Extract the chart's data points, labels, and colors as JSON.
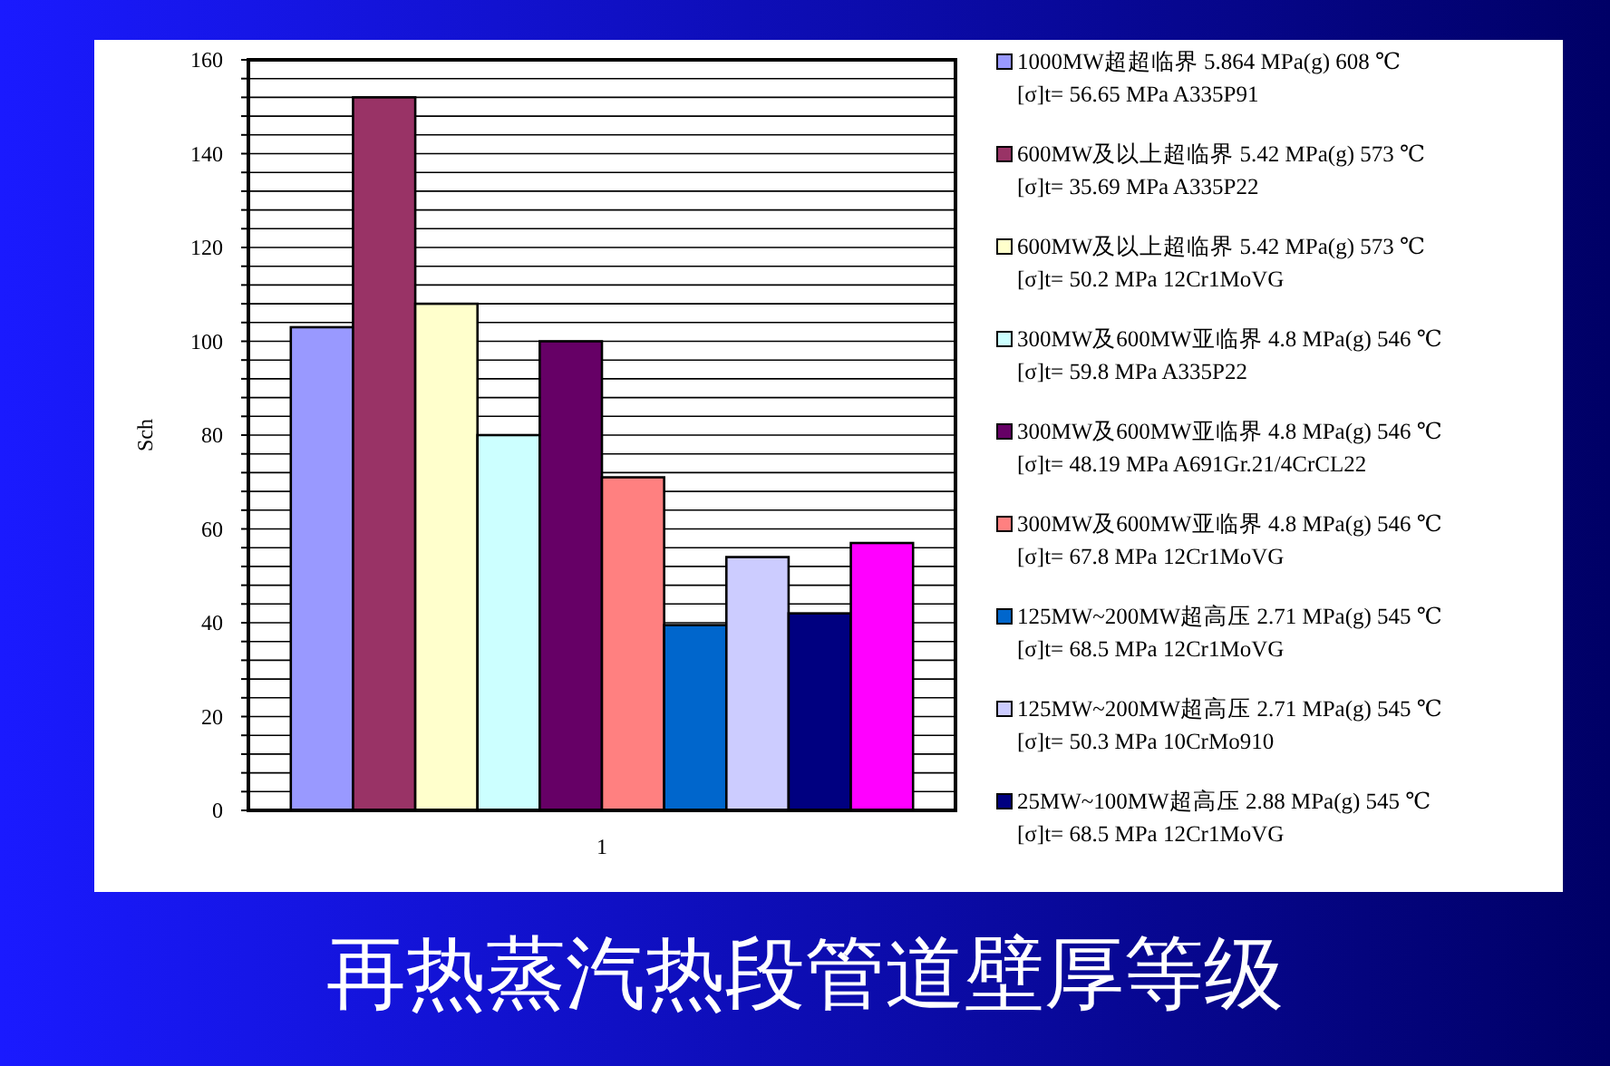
{
  "chart_data": {
    "type": "bar",
    "title": "再热蒸汽热段管道壁厚等级",
    "ylabel": "Sch",
    "categories": [
      "1"
    ],
    "ylim": [
      0,
      160
    ],
    "yticks": [
      0,
      {
        "value": 4,
        "label": null
      },
      {
        "value": 8,
        "label": null
      },
      {
        "value": 12,
        "label": null
      },
      {
        "value": 16,
        "label": null
      },
      20,
      {
        "value": 24,
        "label": null
      },
      {
        "value": 28,
        "label": null
      },
      {
        "value": 32,
        "label": null
      },
      {
        "value": 36,
        "label": null
      },
      40,
      {
        "value": 44,
        "label": null
      },
      {
        "value": 48,
        "label": null
      },
      {
        "value": 52,
        "label": null
      },
      {
        "value": 56,
        "label": null
      },
      60,
      {
        "value": 64,
        "label": null
      },
      {
        "value": 68,
        "label": null
      },
      {
        "value": 72,
        "label": null
      },
      {
        "value": 76,
        "label": null
      },
      80,
      {
        "value": 84,
        "label": null
      },
      {
        "value": 88,
        "label": null
      },
      {
        "value": 92,
        "label": null
      },
      {
        "value": 96,
        "label": null
      },
      100,
      {
        "value": 104,
        "label": null
      },
      {
        "value": 108,
        "label": null
      },
      {
        "value": 112,
        "label": null
      },
      {
        "value": 116,
        "label": null
      },
      120,
      {
        "value": 124,
        "label": null
      },
      {
        "value": 128,
        "label": null
      },
      {
        "value": 132,
        "label": null
      },
      {
        "value": 136,
        "label": null
      },
      140,
      {
        "value": 144,
        "label": null
      },
      {
        "value": 148,
        "label": null
      },
      {
        "value": 152,
        "label": null
      },
      {
        "value": 156,
        "label": null
      },
      160
    ],
    "grid": "y",
    "legend": "right",
    "series": [
      {
        "name": "1000MW超超临界 5.864 MPa(g) 608 ℃\n[σ]t= 56.65 MPa A335P91",
        "color": "#9999ff",
        "values": [
          103
        ]
      },
      {
        "name": "600MW及以上超临界 5.42 MPa(g) 573 ℃\n[σ]t= 35.69  MPa A335P22",
        "color": "#993366",
        "values": [
          152
        ]
      },
      {
        "name": "600MW及以上超临界 5.42 MPa(g) 573 ℃\n[σ]t= 50.2 MPa 12Cr1MoVG",
        "color": "#ffffcc",
        "values": [
          108
        ]
      },
      {
        "name": "300MW及600MW亚临界 4.8 MPa(g) 546 ℃\n[σ]t= 59.8  MPa A335P22",
        "color": "#ccffff",
        "values": [
          80
        ]
      },
      {
        "name": "300MW及600MW亚临界 4.8 MPa(g) 546 ℃\n[σ]t= 48.19 MPa A691Gr.21/4CrCL22",
        "color": "#660066",
        "values": [
          100
        ]
      },
      {
        "name": "300MW及600MW亚临界 4.8 MPa(g) 546 ℃\n[σ]t= 67.8 MPa 12Cr1MoVG",
        "color": "#ff8080",
        "values": [
          71
        ]
      },
      {
        "name": "125MW~200MW超高压 2.71 MPa(g) 545 ℃\n[σ]t= 68.5 MPa 12Cr1MoVG",
        "color": "#0066cc",
        "values": [
          39.5
        ]
      },
      {
        "name": "125MW~200MW超高压 2.71 MPa(g) 545 ℃\n[σ]t= 50.3 MPa 10CrMo910",
        "color": "#ccccff",
        "values": [
          54
        ]
      },
      {
        "name": "25MW~100MW超高压 2.88 MPa(g) 545 ℃\n[σ]t= 68.5 MPa 12Cr1MoVG",
        "color": "#000080",
        "values": [
          42
        ]
      },
      {
        "color": "#ff00ff",
        "values": [
          57
        ]
      }
    ]
  }
}
